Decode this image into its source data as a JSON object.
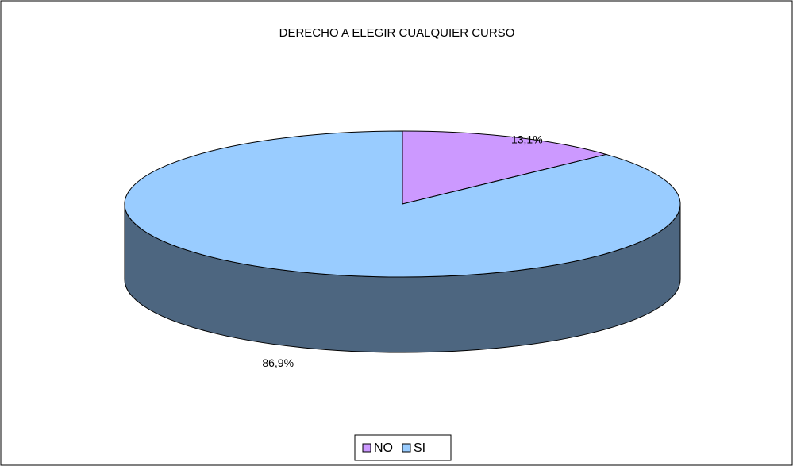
{
  "chart_data": {
    "type": "pie",
    "title": "DERECHO A ELEGIR CUALQUIER CURSO",
    "categories": [
      "NO",
      "SI"
    ],
    "values": [
      13.1,
      86.9
    ],
    "value_labels": [
      "13,1%",
      "86,9%"
    ],
    "colors": [
      "#cc99ff",
      "#99ccff"
    ],
    "legend": "bottom"
  }
}
